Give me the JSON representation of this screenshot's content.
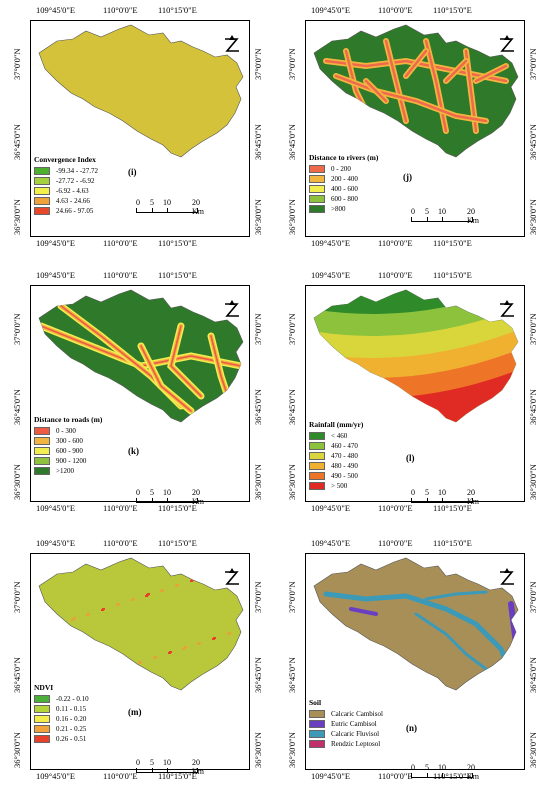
{
  "coords": {
    "top": [
      "109°45'0\"E",
      "110°0'0\"E",
      "110°15'0\"E"
    ],
    "bottom": [
      "109°45'0\"E",
      "110°0'0\"E",
      "110°15'0\"E"
    ],
    "left": [
      "37°0'0\"N",
      "36°45'0\"N",
      "36°30'0\"N"
    ],
    "right": [
      "37°0'0\"N",
      "36°45'0\"N",
      "36°30'0\"N"
    ]
  },
  "scale": {
    "ticks": [
      "0",
      "5",
      "10",
      "20 Km"
    ]
  },
  "north_symbol": "N",
  "panels": [
    {
      "label": "(i)",
      "legend_title": "Convergence Index",
      "fill": "#d4c23a",
      "legend": [
        {
          "label": "-99.34 - -27.72",
          "color": "#4caf2e"
        },
        {
          "label": "-27.72 - -6.92",
          "color": "#a5d23c"
        },
        {
          "label": "-6.92 - 4.63",
          "color": "#f3f04a"
        },
        {
          "label": "4.63 - 24.66",
          "color": "#f0a23a"
        },
        {
          "label": "24.66 - 97.05",
          "color": "#e8472a"
        }
      ]
    },
    {
      "label": "(j)",
      "legend_title": "Distance to rivers (m)",
      "fill": "#2f7a2a",
      "legend": [
        {
          "label": "0 - 200",
          "color": "#ee6a4a"
        },
        {
          "label": "200 - 400",
          "color": "#f2b540"
        },
        {
          "label": "400 - 600",
          "color": "#f2ee50"
        },
        {
          "label": "600 - 800",
          "color": "#8ec23e"
        },
        {
          "label": ">800",
          "color": "#2f7a2a"
        }
      ]
    },
    {
      "label": "(k)",
      "legend_title": "Distance to roads (m)",
      "fill": "#2f7a2a",
      "legend": [
        {
          "label": "0 - 300",
          "color": "#ee5a44"
        },
        {
          "label": "300 - 600",
          "color": "#f2b540"
        },
        {
          "label": "600 - 900",
          "color": "#f2ee50"
        },
        {
          "label": "900 - 1200",
          "color": "#8ec23e"
        },
        {
          "label": ">1200",
          "color": "#2f7a2a"
        }
      ]
    },
    {
      "label": "(l)",
      "legend_title": "Rainfall (mm/yr)",
      "fill": "#e8a030",
      "legend": [
        {
          "label": "< 460",
          "color": "#2f8a2a"
        },
        {
          "label": "460 - 470",
          "color": "#8cc23c"
        },
        {
          "label": "470 - 480",
          "color": "#d8d63a"
        },
        {
          "label": "480 - 490",
          "color": "#f0b030"
        },
        {
          "label": "490 - 500",
          "color": "#ee7428"
        },
        {
          "label": "> 500",
          "color": "#e02a24"
        }
      ]
    },
    {
      "label": "(m)",
      "legend_title": "NDVI",
      "fill": "#b8c83a",
      "legend": [
        {
          "label": "-0.22 - 0.10",
          "color": "#4caf3a"
        },
        {
          "label": "0.11 - 0.15",
          "color": "#b4d43c"
        },
        {
          "label": "0.16 - 0.20",
          "color": "#f3ec4a"
        },
        {
          "label": "0.21 - 0.25",
          "color": "#f2a23a"
        },
        {
          "label": "0.26 - 0.51",
          "color": "#e8402a"
        }
      ]
    },
    {
      "label": "(n)",
      "legend_title": "Soil",
      "fill": "#a88f58",
      "legend": [
        {
          "label": "Calcaric Cambisol",
          "color": "#a88f58"
        },
        {
          "label": "Eutric Cambisol",
          "color": "#6a3ec0"
        },
        {
          "label": "Calcaric Fluvisol",
          "color": "#3a9ab8"
        },
        {
          "label": "Rendzic Leptosol",
          "color": "#c0306a"
        }
      ]
    }
  ]
}
